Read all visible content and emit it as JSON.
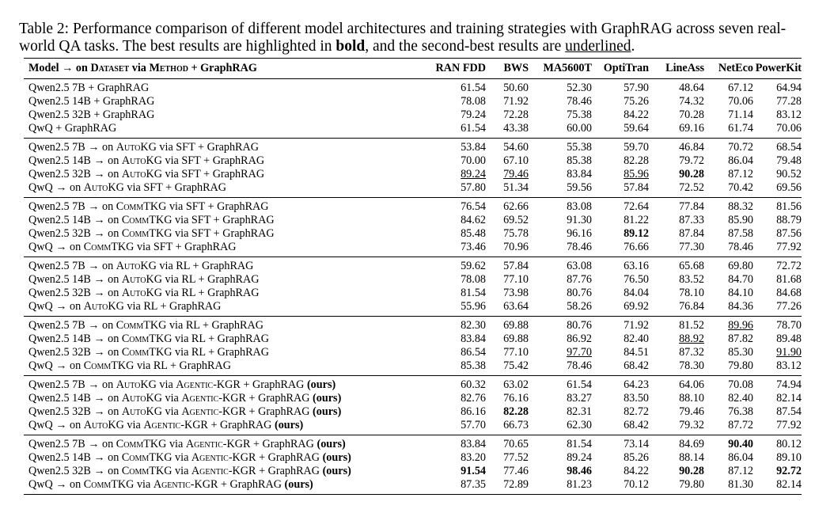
{
  "caption": {
    "part1": "Table 2: Performance comparison of different model architectures and training strategies with GraphRAG across seven real-world QA tasks. The best results are highlighted in ",
    "bold_word": "bold",
    "part2": ", and the second-best results are ",
    "underline_word": "underlined",
    "part3": "."
  },
  "header": {
    "model_prefix": "Model → on ",
    "dataset_word": "Dataset",
    "via_word": " via ",
    "method_word": "Method",
    "model_suffix": " + GraphRAG",
    "columns": [
      "RAN FDD",
      "BWS",
      "MA5600T",
      "OptiTran",
      "LineAss",
      "NetEco",
      "PowerKit"
    ]
  },
  "groups": [
    {
      "rows": [
        {
          "base": "Qwen2.5 7B",
          "dataset": "",
          "method": "",
          "ours": "",
          "values": [
            "61.54",
            "50.60",
            "52.30",
            "57.90",
            "48.64",
            "67.12",
            "64.94"
          ]
        },
        {
          "base": "Qwen2.5 14B",
          "dataset": "",
          "method": "",
          "ours": "",
          "values": [
            "78.08",
            "71.92",
            "78.46",
            "75.26",
            "74.32",
            "70.06",
            "77.28"
          ]
        },
        {
          "base": "Qwen2.5 32B",
          "dataset": "",
          "method": "",
          "ours": "",
          "values": [
            "79.24",
            "72.28",
            "75.38",
            "84.22",
            "70.28",
            "71.14",
            "83.12"
          ]
        },
        {
          "base": "QwQ",
          "dataset": "",
          "method": "",
          "ours": "",
          "values": [
            "61.54",
            "43.38",
            "60.00",
            "59.64",
            "69.16",
            "61.74",
            "70.06"
          ]
        }
      ]
    },
    {
      "rows": [
        {
          "base": "Qwen2.5 7B",
          "dataset": "AutoKG",
          "method": "SFT",
          "ours": "",
          "values": [
            "53.84",
            "54.60",
            "55.38",
            "59.70",
            "46.84",
            "70.72",
            "68.54"
          ]
        },
        {
          "base": "Qwen2.5 14B",
          "dataset": "AutoKG",
          "method": "SFT",
          "ours": "",
          "values": [
            "70.00",
            "67.10",
            "85.38",
            "82.28",
            "79.72",
            "86.04",
            "79.48"
          ]
        },
        {
          "base": "Qwen2.5 32B",
          "dataset": "AutoKG",
          "method": "SFT",
          "ours": "",
          "values": [
            "89.24",
            "79.46",
            "83.84",
            "85.96",
            "90.28",
            "87.12",
            "90.52"
          ],
          "styles": [
            "u",
            "u",
            "",
            "u",
            "b",
            "",
            ""
          ]
        },
        {
          "base": "QwQ",
          "dataset": "AutoKG",
          "method": "SFT",
          "ours": "",
          "values": [
            "57.80",
            "51.34",
            "59.56",
            "57.84",
            "72.52",
            "70.42",
            "69.56"
          ]
        }
      ]
    },
    {
      "rows": [
        {
          "base": "Qwen2.5 7B",
          "dataset": "CommTKG",
          "method": "SFT",
          "ours": "",
          "values": [
            "76.54",
            "62.66",
            "83.08",
            "72.64",
            "77.84",
            "88.32",
            "81.56"
          ]
        },
        {
          "base": "Qwen2.5 14B",
          "dataset": "CommTKG",
          "method": "SFT",
          "ours": "",
          "values": [
            "84.62",
            "69.52",
            "91.30",
            "81.22",
            "87.33",
            "85.90",
            "88.79"
          ]
        },
        {
          "base": "Qwen2.5 32B",
          "dataset": "CommTKG",
          "method": "SFT",
          "ours": "",
          "values": [
            "85.48",
            "75.78",
            "96.16",
            "89.12",
            "87.84",
            "87.58",
            "87.56"
          ],
          "styles": [
            "",
            "",
            "",
            "b",
            "",
            "",
            ""
          ]
        },
        {
          "base": "QwQ",
          "dataset": "CommTKG",
          "method": "SFT",
          "ours": "",
          "values": [
            "73.46",
            "70.96",
            "78.46",
            "76.66",
            "77.30",
            "78.46",
            "77.92"
          ]
        }
      ]
    },
    {
      "rows": [
        {
          "base": "Qwen2.5 7B",
          "dataset": "AutoKG",
          "method": "RL",
          "ours": "",
          "values": [
            "59.62",
            "57.84",
            "63.08",
            "63.16",
            "65.68",
            "69.80",
            "72.72"
          ]
        },
        {
          "base": "Qwen2.5 14B",
          "dataset": "AutoKG",
          "method": "RL",
          "ours": "",
          "values": [
            "78.08",
            "77.10",
            "87.76",
            "76.50",
            "83.52",
            "84.70",
            "81.68"
          ]
        },
        {
          "base": "Qwen2.5 32B",
          "dataset": "AutoKG",
          "method": "RL",
          "ours": "",
          "values": [
            "81.54",
            "73.98",
            "80.76",
            "84.04",
            "78.10",
            "84.10",
            "84.68"
          ]
        },
        {
          "base": "QwQ",
          "dataset": "AutoKG",
          "method": "RL",
          "ours": "",
          "values": [
            "55.96",
            "63.64",
            "58.26",
            "69.92",
            "76.84",
            "84.36",
            "77.26"
          ]
        }
      ]
    },
    {
      "rows": [
        {
          "base": "Qwen2.5 7B",
          "dataset": "CommTKG",
          "method": "RL",
          "ours": "",
          "values": [
            "82.30",
            "69.88",
            "80.76",
            "71.92",
            "81.52",
            "89.96",
            "78.70"
          ],
          "styles": [
            "",
            "",
            "",
            "",
            "",
            "u",
            ""
          ]
        },
        {
          "base": "Qwen2.5 14B",
          "dataset": "CommTKG",
          "method": "RL",
          "ours": "",
          "values": [
            "83.84",
            "69.88",
            "86.92",
            "82.40",
            "88.92",
            "87.82",
            "89.48"
          ],
          "styles": [
            "",
            "",
            "",
            "",
            "u",
            "",
            ""
          ]
        },
        {
          "base": "Qwen2.5 32B",
          "dataset": "CommTKG",
          "method": "RL",
          "ours": "",
          "values": [
            "86.54",
            "77.10",
            "97.70",
            "84.51",
            "87.32",
            "85.30",
            "91.90"
          ],
          "styles": [
            "",
            "",
            "u",
            "",
            "",
            "",
            "u"
          ]
        },
        {
          "base": "QwQ",
          "dataset": "CommTKG",
          "method": "RL",
          "ours": "",
          "values": [
            "85.38",
            "75.42",
            "78.46",
            "68.42",
            "78.30",
            "79.80",
            "83.12"
          ]
        }
      ]
    },
    {
      "rows": [
        {
          "base": "Qwen2.5 7B",
          "dataset": "AutoKG",
          "method": "Agentic-KGR",
          "ours": " (ours)",
          "values": [
            "60.32",
            "63.02",
            "61.54",
            "64.23",
            "64.06",
            "70.08",
            "74.94"
          ]
        },
        {
          "base": "Qwen2.5 14B",
          "dataset": "AutoKG",
          "method": "Agentic-KGR",
          "ours": " (ours)",
          "values": [
            "82.76",
            "76.16",
            "83.27",
            "83.50",
            "88.10",
            "82.40",
            "82.14"
          ]
        },
        {
          "base": "Qwen2.5 32B",
          "dataset": "AutoKG",
          "method": "Agentic-KGR",
          "ours": " (ours)",
          "values": [
            "86.16",
            "82.28",
            "82.31",
            "82.72",
            "79.46",
            "76.38",
            "87.54"
          ],
          "styles": [
            "",
            "b",
            "",
            "",
            "",
            "",
            ""
          ]
        },
        {
          "base": "QwQ",
          "dataset": "AutoKG",
          "method": "Agentic-KGR",
          "ours": " (ours)",
          "values": [
            "57.70",
            "66.73",
            "62.30",
            "68.42",
            "79.32",
            "87.72",
            "77.92"
          ]
        }
      ]
    },
    {
      "rows": [
        {
          "base": "Qwen2.5 7B",
          "dataset": "CommTKG",
          "method": "Agentic-KGR",
          "ours": " (ours)",
          "values": [
            "83.84",
            "70.65",
            "81.54",
            "73.14",
            "84.69",
            "90.40",
            "80.12"
          ],
          "styles": [
            "",
            "",
            "",
            "",
            "",
            "b",
            ""
          ]
        },
        {
          "base": "Qwen2.5 14B",
          "dataset": "CommTKG",
          "method": "Agentic-KGR",
          "ours": " (ours)",
          "values": [
            "83.20",
            "77.52",
            "89.24",
            "85.26",
            "88.14",
            "86.04",
            "89.10"
          ]
        },
        {
          "base": "Qwen2.5 32B",
          "dataset": "CommTKG",
          "method": "Agentic-KGR",
          "ours": " (ours)",
          "values": [
            "91.54",
            "77.46",
            "98.46",
            "84.22",
            "90.28",
            "87.12",
            "92.72"
          ],
          "styles": [
            "b",
            "",
            "b",
            "",
            "b",
            "",
            "b"
          ]
        },
        {
          "base": "QwQ",
          "dataset": "CommTKG",
          "method": "Agentic-KGR",
          "ours": " (ours)",
          "values": [
            "87.35",
            "72.89",
            "81.23",
            "70.12",
            "79.80",
            "81.30",
            "82.14"
          ]
        }
      ]
    }
  ]
}
